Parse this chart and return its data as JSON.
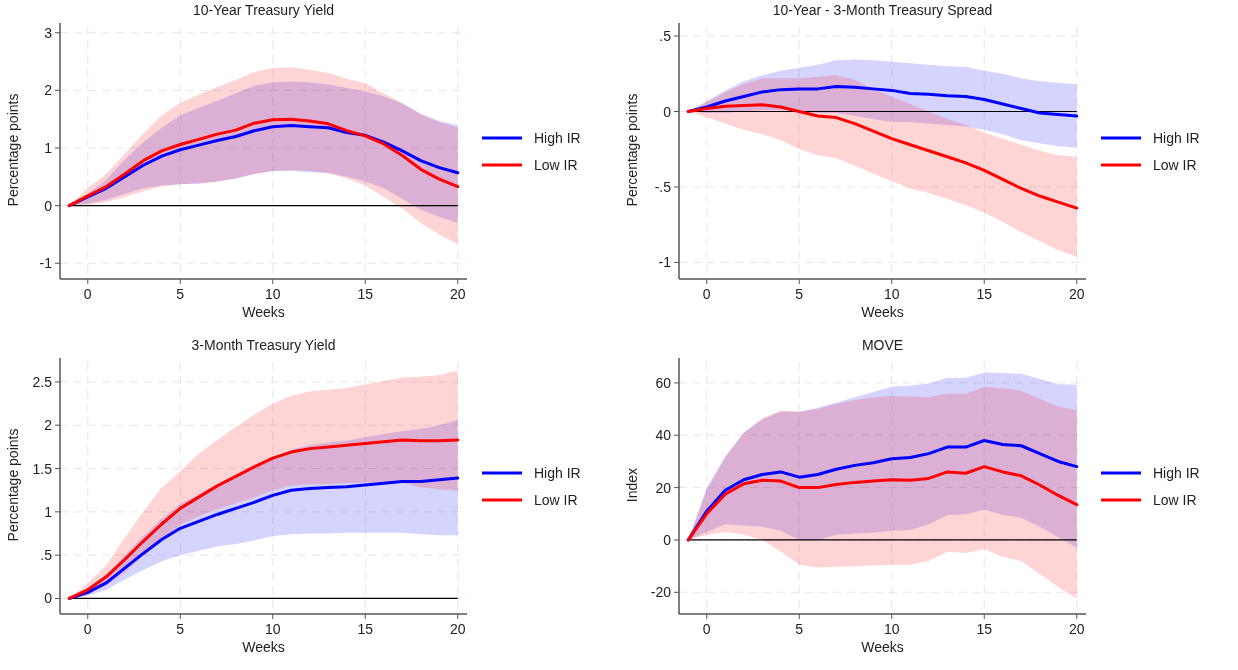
{
  "chart_data": [
    {
      "type": "line",
      "title": "10-Year Treasury Yield",
      "xlabel": "Weeks",
      "ylabel": "Percentage points",
      "x": [
        -1,
        0,
        1,
        2,
        3,
        4,
        5,
        6,
        7,
        8,
        9,
        10,
        11,
        12,
        13,
        14,
        15,
        16,
        17,
        18,
        19,
        20
      ],
      "xlim": [
        -1.5,
        20.5
      ],
      "xticks": [
        0,
        5,
        10,
        15,
        20
      ],
      "ylim": [
        -1.17,
        3.1
      ],
      "yticks": [
        -1,
        0,
        1,
        2,
        3
      ],
      "grid": true,
      "legend": "right",
      "ref_lines": [
        {
          "axis": "y",
          "value": 0,
          "color": "#000000"
        }
      ],
      "series": [
        {
          "name": "High IR",
          "color": "#0000ff",
          "values": [
            0,
            0.15,
            0.3,
            0.5,
            0.7,
            0.86,
            0.97,
            1.05,
            1.13,
            1.2,
            1.3,
            1.37,
            1.39,
            1.37,
            1.35,
            1.27,
            1.22,
            1.1,
            0.95,
            0.78,
            0.66,
            0.57
          ],
          "lower": [
            0,
            0.03,
            0.1,
            0.2,
            0.3,
            0.35,
            0.37,
            0.38,
            0.42,
            0.47,
            0.55,
            0.6,
            0.6,
            0.58,
            0.56,
            0.5,
            0.42,
            0.3,
            0.12,
            -0.07,
            -0.2,
            -0.3
          ],
          "upper": [
            0,
            0.2,
            0.45,
            0.8,
            1.1,
            1.35,
            1.57,
            1.7,
            1.82,
            1.95,
            2.08,
            2.14,
            2.15,
            2.14,
            2.1,
            2.04,
            1.98,
            1.9,
            1.77,
            1.6,
            1.47,
            1.4
          ]
        },
        {
          "name": "Low IR",
          "color": "#ff0000",
          "values": [
            0,
            0.17,
            0.33,
            0.55,
            0.78,
            0.95,
            1.06,
            1.15,
            1.24,
            1.31,
            1.43,
            1.49,
            1.5,
            1.47,
            1.42,
            1.3,
            1.21,
            1.07,
            0.87,
            0.63,
            0.46,
            0.33
          ],
          "lower": [
            0,
            0.02,
            0.06,
            0.15,
            0.25,
            0.33,
            0.37,
            0.39,
            0.42,
            0.47,
            0.55,
            0.6,
            0.62,
            0.6,
            0.57,
            0.47,
            0.35,
            0.15,
            -0.05,
            -0.3,
            -0.5,
            -0.67
          ],
          "upper": [
            0,
            0.3,
            0.55,
            0.9,
            1.25,
            1.57,
            1.78,
            1.93,
            2.06,
            2.18,
            2.32,
            2.39,
            2.4,
            2.36,
            2.3,
            2.2,
            2.12,
            1.95,
            1.78,
            1.58,
            1.45,
            1.35
          ]
        }
      ]
    },
    {
      "type": "line",
      "title": "10-Year - 3-Month Treasury Spread",
      "xlabel": "Weeks",
      "ylabel": "Percentage points",
      "x": [
        -1,
        0,
        1,
        2,
        3,
        4,
        5,
        6,
        7,
        8,
        9,
        10,
        11,
        12,
        13,
        14,
        15,
        16,
        17,
        18,
        19,
        20
      ],
      "xlim": [
        -1.5,
        20.5
      ],
      "xticks": [
        0,
        5,
        10,
        15,
        20
      ],
      "ylim": [
        -1.07,
        0.56
      ],
      "yticks": [
        {
          "value": -1,
          "label": "-1"
        },
        {
          "value": -0.5,
          "label": "-.5"
        },
        0,
        {
          "value": 0.5,
          "label": ".5"
        }
      ],
      "grid": true,
      "legend": "right",
      "ref_lines": [
        {
          "axis": "y",
          "value": 0,
          "color": "#000000"
        }
      ],
      "series": [
        {
          "name": "High IR",
          "color": "#0000ff",
          "values": [
            0,
            0.03,
            0.07,
            0.1,
            0.13,
            0.145,
            0.15,
            0.15,
            0.165,
            0.16,
            0.15,
            0.14,
            0.12,
            0.115,
            0.105,
            0.1,
            0.08,
            0.05,
            0.02,
            -0.01,
            -0.02,
            -0.03
          ],
          "lower": [
            0,
            -0.01,
            -0.01,
            0,
            0.01,
            0.01,
            0,
            -0.01,
            -0.01,
            -0.03,
            -0.05,
            -0.07,
            -0.07,
            -0.08,
            -0.09,
            -0.1,
            -0.12,
            -0.15,
            -0.19,
            -0.21,
            -0.23,
            -0.24
          ],
          "upper": [
            0,
            0.07,
            0.14,
            0.2,
            0.24,
            0.27,
            0.29,
            0.31,
            0.34,
            0.345,
            0.34,
            0.33,
            0.32,
            0.31,
            0.3,
            0.295,
            0.27,
            0.25,
            0.22,
            0.2,
            0.19,
            0.18
          ]
        },
        {
          "name": "Low IR",
          "color": "#ff0000",
          "values": [
            0,
            0.02,
            0.035,
            0.04,
            0.045,
            0.03,
            0,
            -0.03,
            -0.04,
            -0.08,
            -0.13,
            -0.18,
            -0.22,
            -0.26,
            -0.3,
            -0.34,
            -0.39,
            -0.45,
            -0.51,
            -0.56,
            -0.6,
            -0.64
          ],
          "lower": [
            0,
            -0.04,
            -0.08,
            -0.12,
            -0.15,
            -0.19,
            -0.25,
            -0.29,
            -0.31,
            -0.36,
            -0.41,
            -0.46,
            -0.51,
            -0.54,
            -0.58,
            -0.62,
            -0.67,
            -0.73,
            -0.8,
            -0.86,
            -0.92,
            -0.96
          ],
          "upper": [
            0,
            0.06,
            0.13,
            0.18,
            0.22,
            0.22,
            0.22,
            0.23,
            0.24,
            0.21,
            0.15,
            0.1,
            0.05,
            0,
            -0.05,
            -0.09,
            -0.14,
            -0.18,
            -0.22,
            -0.26,
            -0.29,
            -0.3
          ]
        }
      ]
    },
    {
      "type": "line",
      "title": "3-Month Treasury Yield",
      "xlabel": "Weeks",
      "ylabel": "Percentage points",
      "x": [
        -1,
        0,
        1,
        2,
        3,
        4,
        5,
        6,
        7,
        8,
        9,
        10,
        11,
        12,
        13,
        14,
        15,
        16,
        17,
        18,
        19,
        20
      ],
      "xlim": [
        -1.5,
        20.5
      ],
      "xticks": [
        0,
        5,
        10,
        15,
        20
      ],
      "ylim": [
        -0.11,
        2.73
      ],
      "yticks": [
        0,
        {
          "value": 0.5,
          "label": ".5"
        },
        1,
        1.5,
        2,
        2.5
      ],
      "grid": true,
      "legend": "right",
      "ref_lines": [
        {
          "axis": "y",
          "value": 0,
          "color": "#000000"
        }
      ],
      "series": [
        {
          "name": "High IR",
          "color": "#0000ff",
          "values": [
            0,
            0.07,
            0.18,
            0.35,
            0.52,
            0.68,
            0.81,
            0.89,
            0.97,
            1.04,
            1.11,
            1.19,
            1.25,
            1.27,
            1.28,
            1.29,
            1.31,
            1.33,
            1.35,
            1.35,
            1.37,
            1.39
          ],
          "lower": [
            0,
            0.03,
            0.1,
            0.22,
            0.33,
            0.43,
            0.5,
            0.55,
            0.6,
            0.63,
            0.67,
            0.72,
            0.74,
            0.75,
            0.75,
            0.76,
            0.76,
            0.76,
            0.76,
            0.74,
            0.73,
            0.73
          ],
          "upper": [
            0,
            0.1,
            0.28,
            0.5,
            0.72,
            0.92,
            1.09,
            1.2,
            1.32,
            1.42,
            1.53,
            1.63,
            1.72,
            1.77,
            1.8,
            1.82,
            1.86,
            1.9,
            1.93,
            1.96,
            2,
            2.06
          ]
        },
        {
          "name": "Low IR",
          "color": "#ff0000",
          "values": [
            0,
            0.1,
            0.25,
            0.45,
            0.66,
            0.86,
            1.04,
            1.17,
            1.3,
            1.41,
            1.52,
            1.62,
            1.69,
            1.73,
            1.75,
            1.77,
            1.79,
            1.81,
            1.83,
            1.82,
            1.82,
            1.83
          ],
          "lower": [
            0,
            0.04,
            0.15,
            0.3,
            0.5,
            0.68,
            0.85,
            0.95,
            1.03,
            1.1,
            1.17,
            1.25,
            1.3,
            1.32,
            1.32,
            1.33,
            1.34,
            1.34,
            1.34,
            1.28,
            1.26,
            1.24
          ],
          "upper": [
            0,
            0.18,
            0.38,
            0.7,
            1,
            1.28,
            1.47,
            1.67,
            1.83,
            1.98,
            2.12,
            2.25,
            2.34,
            2.39,
            2.41,
            2.43,
            2.47,
            2.51,
            2.55,
            2.56,
            2.58,
            2.63
          ]
        }
      ]
    },
    {
      "type": "line",
      "title": "MOVE",
      "xlabel": "Weeks",
      "ylabel": "Index",
      "x": [
        -1,
        0,
        1,
        2,
        3,
        4,
        5,
        6,
        7,
        8,
        9,
        10,
        11,
        12,
        13,
        14,
        15,
        16,
        17,
        18,
        19,
        20
      ],
      "xlim": [
        -1.5,
        20.5
      ],
      "xticks": [
        0,
        5,
        10,
        15,
        20
      ],
      "ylim": [
        -26,
        68
      ],
      "yticks": [
        -20,
        0,
        20,
        40,
        60
      ],
      "grid": true,
      "legend": "right",
      "ref_lines": [
        {
          "axis": "y",
          "value": 0,
          "color": "#000000"
        }
      ],
      "series": [
        {
          "name": "High IR",
          "color": "#0000ff",
          "values": [
            0,
            11,
            19,
            23,
            25,
            26,
            24,
            25,
            27,
            28.5,
            29.5,
            31,
            31.5,
            33,
            35.5,
            35.5,
            38,
            36.5,
            36,
            33,
            30,
            28
          ],
          "lower": [
            0,
            3,
            6,
            5.5,
            5,
            3.5,
            0,
            0,
            2,
            2.5,
            2.8,
            3.5,
            3.8,
            6,
            9.5,
            9.8,
            11.5,
            9.5,
            8.5,
            5,
            1,
            -3
          ],
          "upper": [
            0,
            20,
            32,
            41,
            46,
            49,
            49,
            50.5,
            52.5,
            54.5,
            56.5,
            58.5,
            59,
            59.8,
            62,
            62,
            64,
            63.8,
            63.5,
            61.5,
            59.5,
            59.3
          ]
        },
        {
          "name": "Low IR",
          "color": "#ff0000",
          "values": [
            0,
            10,
            17.5,
            21.5,
            22.8,
            22.5,
            20,
            20,
            21.2,
            22,
            22.5,
            23,
            22.8,
            23.5,
            26,
            25.5,
            28,
            26,
            24.5,
            21,
            17,
            13.5
          ],
          "lower": [
            0,
            2,
            3,
            2,
            0,
            -4.5,
            -9.5,
            -10.5,
            -10.2,
            -10,
            -9.8,
            -9.5,
            -9.5,
            -8,
            -4.5,
            -5,
            -3.5,
            -6.5,
            -8,
            -13,
            -18,
            -22.5
          ],
          "upper": [
            0,
            19,
            31.5,
            41,
            46.5,
            49.5,
            49,
            50,
            52,
            53.5,
            54.5,
            55,
            54.8,
            54.5,
            56,
            55.8,
            58.5,
            58,
            57,
            54,
            51,
            49.5
          ]
        }
      ]
    }
  ]
}
